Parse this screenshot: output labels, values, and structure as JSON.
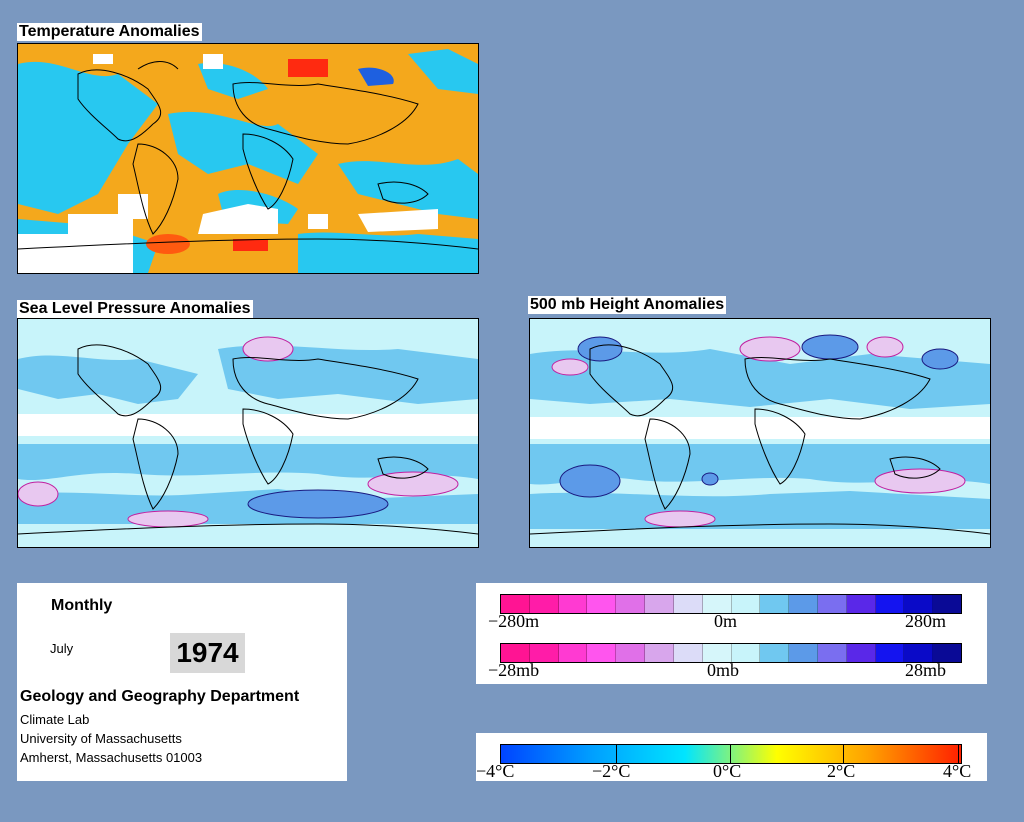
{
  "panels": {
    "temperature": {
      "title": "Temperature Anomalies"
    },
    "slp": {
      "title": "Sea Level Pressure Anomalies"
    },
    "height500": {
      "title": "500 mb Height Anomalies"
    }
  },
  "info": {
    "frequency": "Monthly",
    "month": "July",
    "year": "1974",
    "department": "Geology and Geography Department",
    "line1": "Climate Lab",
    "line2": "University of Massachusetts",
    "line3": "Amherst, Massachusetts 01003"
  },
  "legend_height": {
    "left": "−280m",
    "mid": "0m",
    "right": "280m"
  },
  "legend_pressure": {
    "left": "−28mb",
    "mid": "0mb",
    "right": "28mb"
  },
  "legend_temp": {
    "labels": [
      "−4°C",
      "−2°C",
      "0°C",
      "2°C",
      "4°C"
    ]
  },
  "colors": {
    "background": "#7a98c0",
    "anomaly_scale": [
      "#ff1493",
      "#ff1ca8",
      "#ff3ad2",
      "#ff55ee",
      "#e070e8",
      "#d8a6ec",
      "#dcdcf8",
      "#d6f6fa",
      "#c8f4fa",
      "#70c8f0",
      "#5c9ae8",
      "#7a6ef0",
      "#5a28e8",
      "#1414f0",
      "#0a0ac8",
      "#0a0a96"
    ],
    "temp_gradient": [
      "#0044ff",
      "#00a0ff",
      "#00e5ff",
      "#ffff00",
      "#ffa000",
      "#ff2000"
    ]
  }
}
